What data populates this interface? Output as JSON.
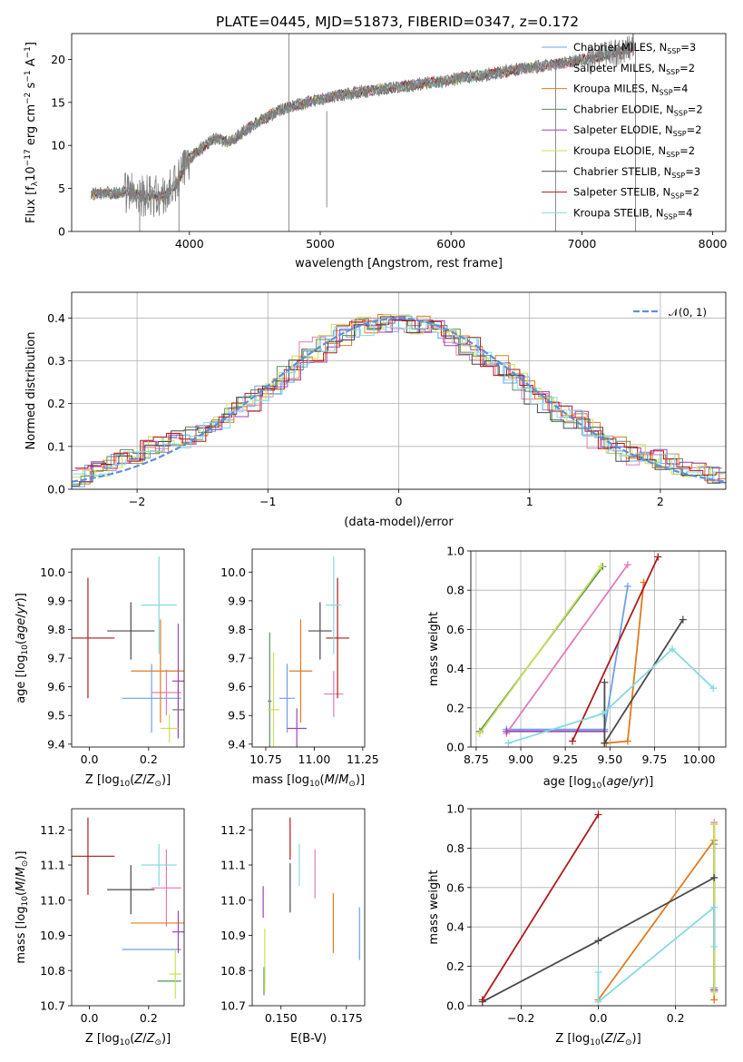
{
  "figure_title": "PLATE=0445, MJD=51873, FIBERID=0347, z=0.172",
  "colors": {
    "Chabrier MILES": "#6fa0e6",
    "Salpeter MILES": "#e27bb8",
    "Kroupa MILES": "#e07b1e",
    "Chabrier ELODIE": "#5a8d5a",
    "Salpeter ELODIE": "#9b44b8",
    "Kroupa ELODIE": "#c9e05a",
    "Chabrier STELIB": "#4a4a4a",
    "Salpeter STELIB": "#b01a1a",
    "Kroupa STELIB": "#86d9e0",
    "data": "#7f7f7f",
    "normal": "#5b8fd9",
    "grid": "#b0b0b0"
  },
  "chart_data": [
    {
      "id": "spectrum",
      "type": "line",
      "title": "",
      "xlabel": "wavelength [Angstrom, rest frame]",
      "ylabel": "Flux [f_λ10^-17 erg cm^-2 s^-1 A^-1]",
      "xlim": [
        3100,
        8100
      ],
      "ylim": [
        0,
        23
      ],
      "xticks": [
        4000,
        5000,
        6000,
        7000,
        8000
      ],
      "yticks": [
        0,
        5,
        10,
        15,
        20
      ],
      "grid": false,
      "legend_position": "upper-right",
      "continuum": {
        "x": [
          3250,
          3400,
          3550,
          3650,
          3800,
          3900,
          4000,
          4100,
          4200,
          4300,
          4500,
          4700,
          4900,
          5100,
          5300,
          5500,
          5700,
          5900,
          6100,
          6300,
          6500,
          6700,
          6900,
          7100,
          7300,
          7400
        ],
        "y": [
          4.3,
          4.5,
          4.6,
          4.2,
          4.0,
          5.5,
          8.5,
          9.8,
          10.8,
          10.4,
          12.5,
          14.2,
          15.0,
          15.7,
          16.2,
          16.6,
          17.0,
          17.4,
          17.9,
          18.3,
          18.8,
          19.2,
          19.7,
          20.2,
          21.0,
          21.6
        ]
      },
      "series": [
        {
          "name": "Chabrier MILES",
          "nssp": "3"
        },
        {
          "name": "Salpeter MILES",
          "nssp": "2"
        },
        {
          "name": "Kroupa MILES",
          "nssp": "4"
        },
        {
          "name": "Chabrier ELODIE",
          "nssp": "2"
        },
        {
          "name": "Salpeter ELODIE",
          "nssp": "2"
        },
        {
          "name": "Kroupa ELODIE",
          "nssp": "2"
        },
        {
          "name": "Chabrier STELIB",
          "nssp": "3"
        },
        {
          "name": "Salpeter STELIB",
          "nssp": "2"
        },
        {
          "name": "Kroupa STELIB",
          "nssp": "4"
        }
      ]
    },
    {
      "id": "residuals",
      "type": "line",
      "title": "",
      "xlabel": "(data-model)/error",
      "ylabel": "Normed distribution",
      "xlim": [
        -2.5,
        2.5
      ],
      "ylim": [
        0,
        0.46
      ],
      "xticks": [
        -2,
        -1,
        0,
        1,
        2
      ],
      "yticks": [
        0.0,
        0.1,
        0.2,
        0.3,
        0.4
      ],
      "grid": true,
      "legend_position": "upper-right",
      "legend_label": "𝒩(0, 1)",
      "bin_width": 0.1,
      "histogram_envelope": [
        0.03,
        0.04,
        0.05,
        0.06,
        0.08,
        0.09,
        0.1,
        0.11,
        0.12,
        0.13,
        0.14,
        0.16,
        0.18,
        0.2,
        0.22,
        0.24,
        0.27,
        0.3,
        0.32,
        0.34,
        0.36,
        0.37,
        0.38,
        0.39,
        0.39,
        0.39,
        0.38,
        0.37,
        0.36,
        0.35,
        0.33,
        0.31,
        0.29,
        0.27,
        0.25,
        0.22,
        0.2,
        0.18,
        0.16,
        0.14,
        0.12,
        0.1,
        0.09,
        0.08,
        0.07,
        0.06,
        0.05,
        0.04,
        0.035,
        0.03
      ],
      "histogram_shift": [
        0.0,
        -0.12,
        0.08,
        -0.06,
        0.1,
        -0.03,
        -0.08,
        0.05,
        0.02
      ],
      "normal": {
        "mean": 0,
        "sigma": 1
      }
    },
    {
      "id": "age-vs-Z",
      "type": "scatter",
      "title": "",
      "xlabel": "Z [log10(Z/Z⊙)]",
      "ylabel": "age [log10(age/yr)]",
      "xlim": [
        -0.06,
        0.32
      ],
      "ylim": [
        9.39,
        10.08
      ],
      "xticks": [
        0.0,
        0.2
      ],
      "yticks": [
        9.4,
        9.5,
        9.6,
        9.7,
        9.8,
        9.9,
        10.0
      ],
      "grid": false,
      "points": [
        {
          "series": "Chabrier MILES",
          "x": 0.21,
          "y": 9.56,
          "xerr": 0.1,
          "yerr": 0.12
        },
        {
          "series": "Salpeter MILES",
          "x": 0.26,
          "y": 9.58,
          "xerr": 0.05,
          "yerr": 0.08
        },
        {
          "series": "Kroupa MILES",
          "x": 0.24,
          "y": 9.655,
          "xerr": 0.1,
          "yerr": 0.18
        },
        {
          "series": "Chabrier ELODIE",
          "x": 0.3,
          "y": 9.52,
          "xerr": 0.02,
          "yerr": 0.1
        },
        {
          "series": "Salpeter ELODIE",
          "x": 0.3,
          "y": 9.62,
          "xerr": 0.02,
          "yerr": 0.2
        },
        {
          "series": "Kroupa ELODIE",
          "x": 0.27,
          "y": 9.455,
          "xerr": 0.03,
          "yerr": 0.05
        },
        {
          "series": "Chabrier STELIB",
          "x": 0.14,
          "y": 9.795,
          "xerr": 0.08,
          "yerr": 0.1
        },
        {
          "series": "Salpeter STELIB",
          "x": -0.005,
          "y": 9.77,
          "xerr": 0.09,
          "yerr": 0.21
        },
        {
          "series": "Kroupa STELIB",
          "x": 0.235,
          "y": 9.885,
          "xerr": 0.06,
          "yerr": 0.17
        }
      ]
    },
    {
      "id": "age-vs-mass",
      "type": "scatter",
      "title": "",
      "xlabel": "mass [log10(M/M⊙)]",
      "ylabel": "",
      "xlim": [
        10.68,
        11.26
      ],
      "ylim": [
        9.39,
        10.08
      ],
      "xticks": [
        10.75,
        11.0,
        11.25
      ],
      "yticks": [
        9.4,
        9.5,
        9.6,
        9.7,
        9.8,
        9.9,
        10.0
      ],
      "grid": false,
      "points": [
        {
          "series": "Chabrier MILES",
          "x": 10.86,
          "y": 9.56,
          "xerr": 0.04,
          "yerr": 0.12
        },
        {
          "series": "Salpeter MILES",
          "x": 11.1,
          "y": 9.575,
          "xerr": 0.05,
          "yerr": 0.08
        },
        {
          "series": "Kroupa MILES",
          "x": 10.93,
          "y": 9.655,
          "xerr": 0.06,
          "yerr": 0.18
        },
        {
          "series": "Chabrier ELODIE",
          "x": 10.77,
          "y": 9.55,
          "xerr": 0.01,
          "yerr": 0.24
        },
        {
          "series": "Salpeter ELODIE",
          "x": 10.91,
          "y": 9.455,
          "xerr": 0.05,
          "yerr": 0.07
        },
        {
          "series": "Kroupa ELODIE",
          "x": 10.79,
          "y": 9.52,
          "xerr": 0.03,
          "yerr": 0.2
        },
        {
          "series": "Chabrier STELIB",
          "x": 11.03,
          "y": 9.795,
          "xerr": 0.06,
          "yerr": 0.1
        },
        {
          "series": "Salpeter STELIB",
          "x": 11.12,
          "y": 9.77,
          "xerr": 0.06,
          "yerr": 0.21
        },
        {
          "series": "Kroupa STELIB",
          "x": 11.1,
          "y": 9.885,
          "xerr": 0.04,
          "yerr": 0.17
        }
      ]
    },
    {
      "id": "weight-vs-age",
      "type": "line",
      "title": "",
      "xlabel": "age [log10(age/yr)]",
      "ylabel": "mass weight",
      "xlim": [
        8.72,
        10.15
      ],
      "ylim": [
        0,
        1.0
      ],
      "xticks": [
        8.75,
        9.0,
        9.25,
        9.5,
        9.75,
        10.0
      ],
      "yticks": [
        0.0,
        0.2,
        0.4,
        0.6,
        0.8,
        1.0
      ],
      "grid": true,
      "series": [
        {
          "name": "Chabrier MILES",
          "x": [
            8.92,
            9.47,
            9.6
          ],
          "y": [
            0.09,
            0.09,
            0.82
          ]
        },
        {
          "name": "Salpeter MILES",
          "x": [
            8.92,
            9.6
          ],
          "y": [
            0.07,
            0.93
          ]
        },
        {
          "name": "Kroupa MILES",
          "x": [
            9.48,
            9.6,
            9.69
          ],
          "y": [
            0.02,
            0.03,
            0.84
          ]
        },
        {
          "name": "Chabrier ELODIE",
          "x": [
            8.77,
            9.46
          ],
          "y": [
            0.08,
            0.92
          ]
        },
        {
          "name": "Salpeter ELODIE",
          "x": [
            8.92,
            9.47
          ],
          "y": [
            0.08,
            0.08
          ]
        },
        {
          "name": "Kroupa ELODIE",
          "x": [
            8.77,
            9.45
          ],
          "y": [
            0.07,
            0.92
          ]
        },
        {
          "name": "Chabrier STELIB",
          "x": [
            9.47,
            9.47,
            9.91
          ],
          "y": [
            0.33,
            0.02,
            0.65
          ]
        },
        {
          "name": "Salpeter STELIB",
          "x": [
            9.29,
            9.77
          ],
          "y": [
            0.03,
            0.97
          ]
        },
        {
          "name": "Kroupa STELIB",
          "x": [
            8.93,
            9.46,
            9.85,
            10.08
          ],
          "y": [
            0.02,
            0.17,
            0.5,
            0.3
          ]
        }
      ]
    },
    {
      "id": "mass-vs-Z",
      "type": "scatter",
      "title": "",
      "xlabel": "Z [log10(Z/Z⊙)]",
      "ylabel": "mass [log10(M/M⊙)]",
      "xlim": [
        -0.06,
        0.32
      ],
      "ylim": [
        10.7,
        11.26
      ],
      "xticks": [
        0.0,
        0.2
      ],
      "yticks": [
        10.7,
        10.8,
        10.9,
        11.0,
        11.1,
        11.2
      ],
      "grid": false,
      "points": [
        {
          "series": "Chabrier MILES",
          "x": 0.21,
          "y": 10.86,
          "xerr": 0.1,
          "yerr": 0.0
        },
        {
          "series": "Salpeter MILES",
          "x": 0.26,
          "y": 11.035,
          "xerr": 0.05,
          "yerr": 0.11
        },
        {
          "series": "Kroupa MILES",
          "x": 0.24,
          "y": 10.935,
          "xerr": 0.1,
          "yerr": 0.0
        },
        {
          "series": "Chabrier ELODIE",
          "x": 0.27,
          "y": 10.77,
          "xerr": 0.04,
          "yerr": 0.0
        },
        {
          "series": "Salpeter ELODIE",
          "x": 0.3,
          "y": 10.91,
          "xerr": 0.02,
          "yerr": 0.06
        },
        {
          "series": "Kroupa ELODIE",
          "x": 0.29,
          "y": 10.79,
          "xerr": 0.02,
          "yerr": 0.07
        },
        {
          "series": "Chabrier STELIB",
          "x": 0.14,
          "y": 11.03,
          "xerr": 0.08,
          "yerr": 0.07
        },
        {
          "series": "Salpeter STELIB",
          "x": -0.005,
          "y": 11.125,
          "xerr": 0.09,
          "yerr": 0.11
        },
        {
          "series": "Kroupa STELIB",
          "x": 0.235,
          "y": 11.1,
          "xerr": 0.06,
          "yerr": 0.06
        }
      ]
    },
    {
      "id": "mass-vs-EBV",
      "type": "scatter",
      "title": "",
      "xlabel": "E(B-V)",
      "ylabel": "",
      "xlim": [
        0.139,
        0.182
      ],
      "ylim": [
        10.7,
        11.26
      ],
      "xticks": [
        0.15,
        0.175
      ],
      "yticks": [
        10.7,
        10.8,
        10.9,
        11.0,
        11.1,
        11.2
      ],
      "grid": false,
      "points": [
        {
          "series": "Chabrier MILES",
          "x": 0.18,
          "y": 10.905,
          "xerr": 0,
          "yerr": 0.075
        },
        {
          "series": "Salpeter MILES",
          "x": 0.163,
          "y": 11.075,
          "xerr": 0,
          "yerr": 0.07
        },
        {
          "series": "Kroupa MILES",
          "x": 0.17,
          "y": 10.935,
          "xerr": 0,
          "yerr": 0.085
        },
        {
          "series": "Chabrier ELODIE",
          "x": 0.1435,
          "y": 10.77,
          "xerr": 0,
          "yerr": 0.04
        },
        {
          "series": "Salpeter ELODIE",
          "x": 0.1432,
          "y": 10.995,
          "xerr": 0,
          "yerr": 0.045
        },
        {
          "series": "Kroupa ELODIE",
          "x": 0.1438,
          "y": 10.83,
          "xerr": 0,
          "yerr": 0.09
        },
        {
          "series": "Chabrier STELIB",
          "x": 0.1535,
          "y": 11.035,
          "xerr": 0,
          "yerr": 0.07
        },
        {
          "series": "Salpeter STELIB",
          "x": 0.1535,
          "y": 11.175,
          "xerr": 0,
          "yerr": 0.06
        },
        {
          "series": "Kroupa STELIB",
          "x": 0.157,
          "y": 11.1,
          "xerr": 0,
          "yerr": 0.06
        }
      ]
    },
    {
      "id": "weight-vs-Z",
      "type": "line",
      "title": "",
      "xlabel": "Z [log10(Z/Z⊙)]",
      "ylabel": "mass weight",
      "xlim": [
        -0.33,
        0.33
      ],
      "ylim": [
        0,
        1.0
      ],
      "xticks": [
        -0.2,
        0.0,
        0.2
      ],
      "yticks": [
        0.0,
        0.2,
        0.4,
        0.6,
        0.8,
        1.0
      ],
      "grid": true,
      "series": [
        {
          "name": "Chabrier MILES",
          "x": [
            0.3,
            0.3
          ],
          "y": [
            0.09,
            0.82
          ]
        },
        {
          "name": "Salpeter MILES",
          "x": [
            0.3,
            0.3
          ],
          "y": [
            0.07,
            0.93
          ]
        },
        {
          "name": "Kroupa MILES",
          "x": [
            0.0,
            0.3,
            0.3
          ],
          "y": [
            0.03,
            0.84,
            0.03
          ]
        },
        {
          "name": "Chabrier ELODIE",
          "x": [
            0.3,
            0.3
          ],
          "y": [
            0.08,
            0.92
          ]
        },
        {
          "name": "Salpeter ELODIE",
          "x": [
            0.3,
            0.3
          ],
          "y": [
            0.08,
            0.08
          ]
        },
        {
          "name": "Kroupa ELODIE",
          "x": [
            0.3,
            0.3
          ],
          "y": [
            0.07,
            0.92
          ]
        },
        {
          "name": "Chabrier STELIB",
          "x": [
            -0.3,
            0.0,
            0.3
          ],
          "y": [
            0.02,
            0.33,
            0.65
          ]
        },
        {
          "name": "Salpeter STELIB",
          "x": [
            -0.3,
            0.0
          ],
          "y": [
            0.03,
            0.97
          ]
        },
        {
          "name": "Kroupa STELIB",
          "x": [
            0.0,
            0.0,
            0.3,
            0.3
          ],
          "y": [
            0.17,
            0.02,
            0.5,
            0.3
          ]
        }
      ]
    }
  ]
}
